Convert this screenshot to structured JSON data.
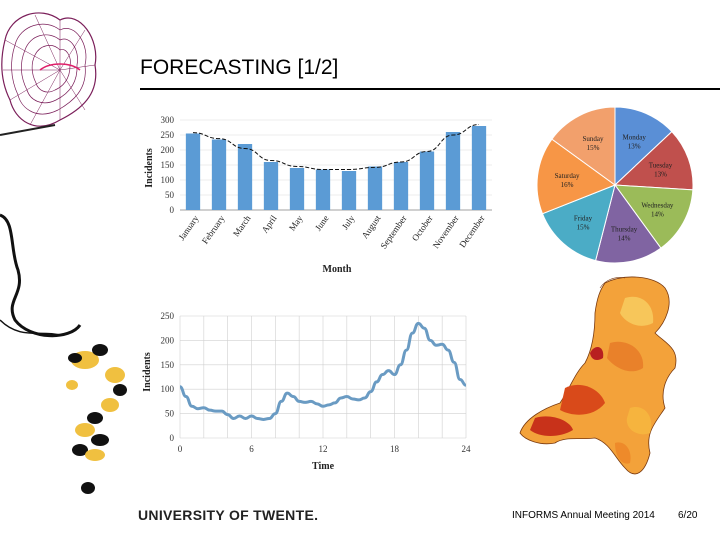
{
  "slide": {
    "title": "FORECASTING [1/2]",
    "footer_left": "UNIVERSITY OF TWENTE.",
    "footer_center": "INFORMS Annual Meeting 2014",
    "footer_right": "6/20"
  },
  "colors": {
    "bar": "#5b9bd5",
    "line": "#6a9bc3",
    "accent_decor": "#7b1f5a"
  },
  "chart_data": [
    {
      "type": "bar",
      "title": "",
      "xlabel": "Month",
      "ylabel": "Incidents",
      "categories": [
        "January",
        "February",
        "March",
        "April",
        "May",
        "June",
        "July",
        "August",
        "September",
        "October",
        "November",
        "December"
      ],
      "values": [
        255,
        235,
        220,
        160,
        140,
        135,
        130,
        145,
        160,
        195,
        260,
        280
      ],
      "trend": [
        258,
        238,
        205,
        165,
        145,
        135,
        135,
        142,
        160,
        195,
        250,
        285
      ],
      "ylim": [
        0,
        300
      ],
      "yticks": [
        0,
        50,
        100,
        150,
        200,
        250,
        300
      ]
    },
    {
      "type": "pie",
      "title": "",
      "labels": [
        "Monday",
        "Tuesday",
        "Wednesday",
        "Thursday",
        "Friday",
        "Saturday",
        "Sunday"
      ],
      "value_labels": [
        "13%",
        "13%",
        "14%",
        "14%",
        "15%",
        "16%",
        "15%"
      ],
      "values": [
        13,
        13,
        14,
        14,
        15,
        16,
        15
      ],
      "colors": [
        "#5a8fd6",
        "#c0504d",
        "#9bbb59",
        "#8064a2",
        "#4bacc6",
        "#f79646",
        "#f2a06c"
      ]
    },
    {
      "type": "line",
      "title": "",
      "xlabel": "Time",
      "ylabel": "Incidents",
      "x": [
        0,
        0.5,
        1,
        1.5,
        2,
        2.5,
        3,
        3.5,
        4,
        4.5,
        5,
        5.5,
        6,
        6.5,
        7,
        7.5,
        8,
        8.5,
        9,
        9.5,
        10,
        10.5,
        11,
        11.5,
        12,
        12.5,
        13,
        13.5,
        14,
        14.5,
        15,
        15.5,
        16,
        16.5,
        17,
        17.5,
        18,
        18.5,
        19,
        19.5,
        20,
        20.5,
        21,
        21.5,
        22,
        22.5,
        23,
        23.5,
        24
      ],
      "y": [
        105,
        85,
        65,
        60,
        62,
        57,
        55,
        55,
        48,
        40,
        45,
        40,
        45,
        40,
        38,
        40,
        50,
        75,
        92,
        85,
        75,
        73,
        75,
        70,
        65,
        68,
        72,
        82,
        85,
        80,
        78,
        82,
        95,
        115,
        130,
        138,
        130,
        150,
        180,
        215,
        235,
        225,
        200,
        190,
        192,
        180,
        155,
        120,
        108
      ],
      "xlim": [
        0,
        24
      ],
      "ylim": [
        0,
        250
      ],
      "xticks": [
        0,
        6,
        12,
        18,
        24
      ],
      "yticks": [
        0,
        50,
        100,
        150,
        200,
        250
      ]
    }
  ]
}
